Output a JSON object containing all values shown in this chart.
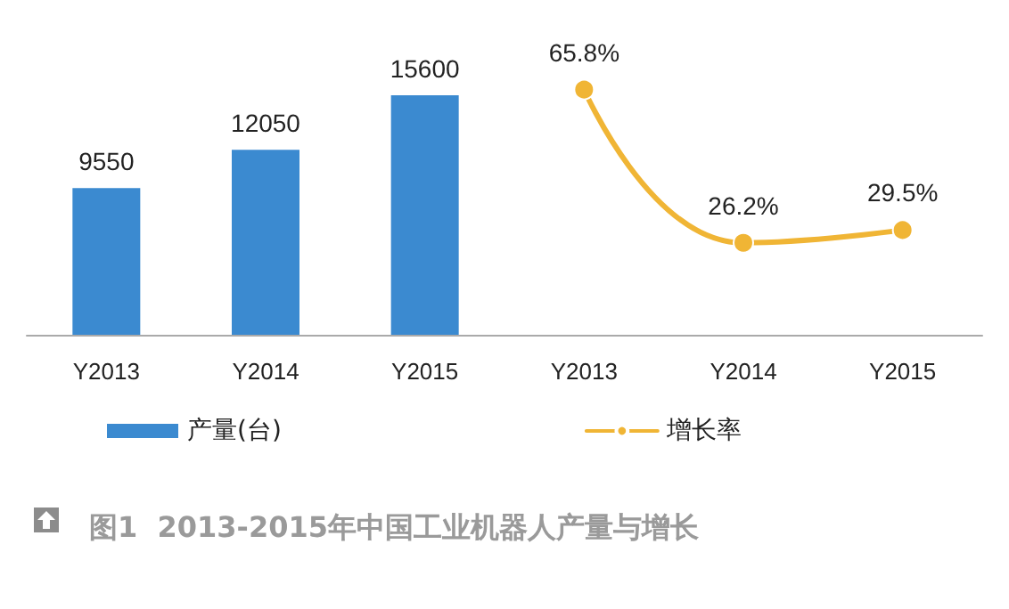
{
  "chart_data": {
    "type": "bar",
    "title": "图1  2013-2015年中国工业机器人产量与增长",
    "categories": [
      "Y2013",
      "Y2014",
      "Y2015",
      "Y2013",
      "Y2014",
      "Y2015"
    ],
    "series": [
      {
        "name": "产量(台)",
        "color": "#3b8ad0",
        "values": [
          9550,
          12050,
          15600,
          null,
          null,
          null
        ],
        "value_labels": [
          "9550",
          "12050",
          "15600",
          null,
          null,
          null
        ]
      },
      {
        "name": "增长率",
        "type": "line",
        "axis": "y2",
        "color": "#f0b535",
        "values": [
          null,
          null,
          null,
          65.8,
          26.2,
          29.5
        ],
        "value_labels": [
          null,
          null,
          null,
          "65.8%",
          "26.2%",
          "29.5%"
        ]
      }
    ],
    "tick_labels": false,
    "legend": "bottom",
    "marker": "circle",
    "line_style": "solid"
  }
}
